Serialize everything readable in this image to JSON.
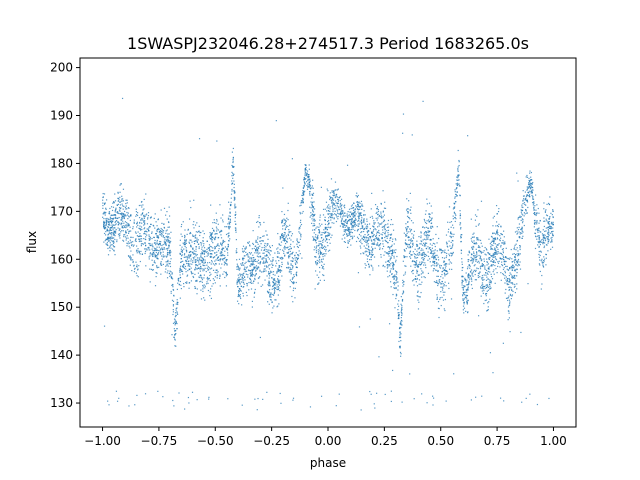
{
  "chart_data": {
    "type": "scatter",
    "title": "1SWASPJ232046.28+274517.3 Period 1683265.0s",
    "xlabel": "phase",
    "ylabel": "flux",
    "xlim": [
      -1.1,
      1.1
    ],
    "ylim": [
      125,
      202
    ],
    "xticks": [
      -1.0,
      -0.75,
      -0.5,
      -0.25,
      0.0,
      0.25,
      0.5,
      0.75,
      1.0
    ],
    "xtick_labels": [
      "−1.00",
      "−0.75",
      "−0.50",
      "−0.25",
      "0.00",
      "0.25",
      "0.50",
      "0.75",
      "1.00"
    ],
    "yticks": [
      130,
      140,
      150,
      160,
      170,
      180,
      190,
      200
    ],
    "ytick_labels": [
      "130",
      "140",
      "150",
      "160",
      "170",
      "180",
      "190",
      "200"
    ],
    "grid": false,
    "legend": "none",
    "marker_color": "#1f77b4",
    "series": [
      {
        "x": [
          -1.0,
          -0.95,
          -0.9,
          -0.85,
          -0.8,
          -0.75,
          -0.7,
          -0.68,
          -0.65,
          -0.6,
          -0.55,
          -0.5,
          -0.45,
          -0.42,
          -0.4,
          -0.35,
          -0.3,
          -0.25,
          -0.2,
          -0.15,
          -0.1,
          -0.05,
          0.0,
          0.05,
          0.1,
          0.15,
          0.2,
          0.25,
          0.3,
          0.32,
          0.35,
          0.4,
          0.45,
          0.5,
          0.55,
          0.58,
          0.6,
          0.65,
          0.7,
          0.75,
          0.8,
          0.85,
          0.9,
          0.95,
          1.0
        ],
        "y": [
          169,
          168,
          167,
          165,
          163,
          165,
          160,
          145,
          163,
          158,
          162,
          160,
          163,
          180,
          152,
          161,
          160,
          157,
          162,
          158,
          178,
          163,
          167,
          171,
          168,
          166,
          165,
          164,
          161,
          142,
          166,
          160,
          163,
          158,
          161,
          180,
          154,
          160,
          158,
          163,
          157,
          162,
          178,
          160,
          168
        ],
        "spread": [
          4,
          5,
          5,
          6,
          6,
          6,
          7,
          4,
          6,
          7,
          6,
          7,
          6,
          3,
          5,
          6,
          6,
          6,
          6,
          6,
          2,
          7,
          5,
          3,
          4,
          5,
          5,
          6,
          6,
          4,
          6,
          6,
          6,
          7,
          6,
          3,
          5,
          6,
          6,
          6,
          6,
          6,
          2,
          6,
          4
        ]
      }
    ]
  }
}
